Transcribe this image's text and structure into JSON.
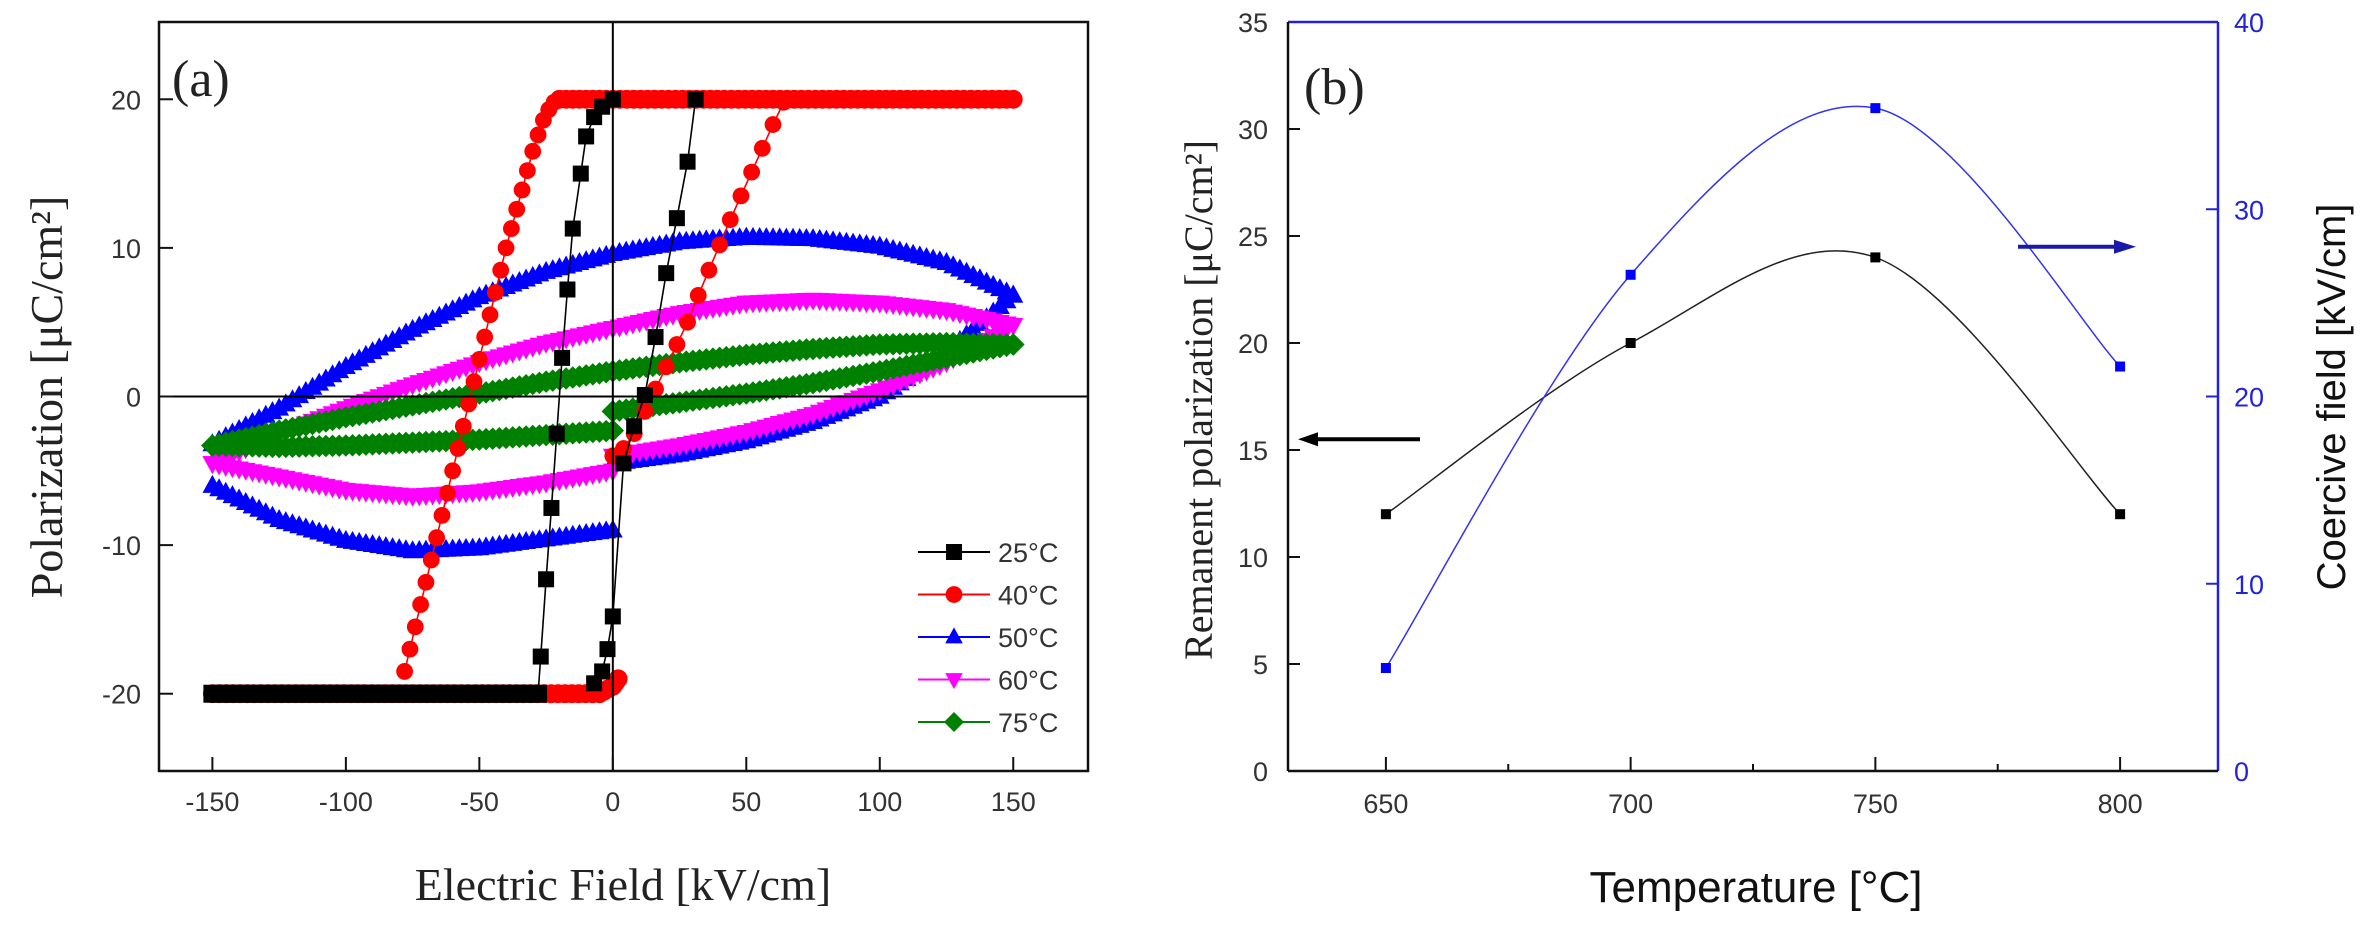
{
  "chart_data": [
    {
      "id": "a",
      "type": "scatter",
      "panel_label": "(a)",
      "title": "",
      "xlabel": "Electric Field [kV/cm]",
      "ylabel": "Polarization [μC/cm²]",
      "xlim": [
        -170,
        178
      ],
      "ylim": [
        -25.2,
        25.2
      ],
      "xticks": [
        -150,
        -100,
        -50,
        0,
        50,
        100,
        150
      ],
      "yticks": [
        -20,
        -10,
        0,
        10,
        20
      ],
      "xtick_labels": [
        "-150",
        "-100",
        "-50",
        "0",
        "50",
        "100",
        "150"
      ],
      "ytick_labels": [
        "-20",
        "-10",
        "0",
        "10",
        "20"
      ],
      "zero_lines": true,
      "legend_position": "bottom-right",
      "series": [
        {
          "name": "25°C",
          "color": "#000000",
          "marker": "square",
          "branches": [
            {
              "x": [
                -28,
                -150
              ],
              "y": [
                -20,
                -20
              ],
              "dense": true
            },
            {
              "x": [
                -28,
                -27,
                -25,
                -23,
                -21,
                -19,
                -17,
                -15,
                -12,
                -10,
                -7,
                -4,
                0
              ],
              "y": [
                -20,
                -17.5,
                -12.3,
                -7.5,
                -2.5,
                2.6,
                7.2,
                11.3,
                15,
                17.5,
                18.8,
                19.5,
                20
              ],
              "dense": false
            },
            {
              "x": [
                -7,
                -4,
                -2,
                0,
                4,
                8,
                12,
                16,
                20,
                24,
                28,
                31
              ],
              "y": [
                -19.3,
                -18.5,
                -17,
                -14.8,
                -4.5,
                -2,
                0.1,
                4,
                8.3,
                12,
                15.8,
                20
              ],
              "dense": false
            }
          ]
        },
        {
          "name": "40°C",
          "color": "#ff0000",
          "marker": "circle",
          "branches": [
            {
              "x": [
                -150,
                -80,
                -5,
                0,
                2
              ],
              "y": [
                -20,
                -20,
                -20,
                -19.5,
                -19
              ],
              "dense": true
            },
            {
              "x": [
                -78,
                -76,
                -74,
                -72,
                -70,
                -68,
                -66,
                -64,
                -62,
                -60,
                -58,
                -56,
                -54,
                -52,
                -50,
                -48,
                -46,
                -44,
                -42,
                -40,
                -38,
                -36,
                -34,
                -32,
                -30,
                -28,
                -26,
                -24,
                -22,
                -20
              ],
              "y": [
                -18.5,
                -17,
                -15.5,
                -14,
                -12.5,
                -11,
                -9.5,
                -8,
                -6.5,
                -5,
                -3.5,
                -2,
                -0.5,
                1,
                2.5,
                4,
                5.5,
                7,
                8.5,
                10,
                11.3,
                12.6,
                13.9,
                15.2,
                16.5,
                17.6,
                18.6,
                19.3,
                19.8,
                20
              ],
              "dense": false
            },
            {
              "x": [
                -20,
                0,
                60,
                150
              ],
              "y": [
                20,
                20,
                20,
                20
              ],
              "dense": true
            },
            {
              "x": [
                0,
                4,
                8,
                12,
                16,
                20,
                24,
                28,
                32,
                36,
                40,
                44,
                48,
                52,
                56,
                60,
                64
              ],
              "y": [
                -4,
                -3.5,
                -2.5,
                -1,
                0.5,
                2,
                3.5,
                5,
                6.8,
                8.5,
                10.2,
                11.9,
                13.5,
                15.1,
                16.7,
                18.3,
                19.8
              ],
              "dense": false
            }
          ]
        },
        {
          "name": "50°C",
          "color": "#0000ff",
          "marker": "triangle-up",
          "branches": [
            {
              "x": [
                -150,
                -125,
                -100,
                -75,
                -50,
                -25,
                0,
                25,
                50,
                75,
                100,
                125,
                150
              ],
              "y": [
                -3.2,
                -0.8,
                2,
                4.5,
                6.7,
                8.4,
                9.6,
                10.4,
                10.7,
                10.6,
                10.1,
                9,
                6.8
              ],
              "dense": true
            },
            {
              "x": [
                150,
                125,
                100,
                75,
                50,
                25,
                0
              ],
              "y": [
                6.8,
                3,
                0,
                -1.7,
                -3,
                -3.9,
                -4.5
              ],
              "dense": true
            },
            {
              "x": [
                0,
                -25,
                -50,
                -75,
                -100,
                -125,
                -150
              ],
              "y": [
                -9,
                -9.6,
                -10.2,
                -10.4,
                -9.7,
                -8.3,
                -6
              ],
              "dense": true
            }
          ]
        },
        {
          "name": "60°C",
          "color": "#ff00ff",
          "marker": "triangle-down",
          "branches": [
            {
              "x": [
                -150,
                -125,
                -100,
                -75,
                -50,
                -25,
                0,
                25,
                50,
                75,
                100,
                125,
                150
              ],
              "y": [
                -4.5,
                -2.5,
                -0.8,
                0.8,
                2.3,
                3.6,
                4.6,
                5.6,
                6.3,
                6.5,
                6.3,
                5.8,
                4.8
              ],
              "dense": true
            },
            {
              "x": [
                150,
                125,
                100,
                75,
                50,
                25,
                0
              ],
              "y": [
                4.8,
                2.3,
                0.4,
                -1.2,
                -2.4,
                -3.3,
                -4
              ],
              "dense": true
            },
            {
              "x": [
                0,
                -25,
                -50,
                -75,
                -100,
                -125,
                -150
              ],
              "y": [
                -5,
                -5.8,
                -6.4,
                -6.7,
                -6.3,
                -5.4,
                -4.5
              ],
              "dense": true
            }
          ]
        },
        {
          "name": "75°C",
          "color": "#008000",
          "marker": "diamond",
          "branches": [
            {
              "x": [
                -150,
                -125,
                -100,
                -75,
                -50,
                -25,
                0,
                25,
                50,
                75,
                100,
                125,
                150
              ],
              "y": [
                -3.3,
                -2.3,
                -1.4,
                -0.6,
                0.2,
                1,
                1.7,
                2.3,
                2.8,
                3.2,
                3.5,
                3.6,
                3.5
              ],
              "dense": true
            },
            {
              "x": [
                150,
                125,
                100,
                75,
                50,
                25,
                0
              ],
              "y": [
                3.5,
                2.6,
                1.7,
                0.9,
                0.2,
                -0.4,
                -1
              ],
              "dense": true
            },
            {
              "x": [
                0,
                -25,
                -50,
                -75,
                -100,
                -125,
                -150
              ],
              "y": [
                -2.3,
                -2.6,
                -2.9,
                -3.1,
                -3.3,
                -3.4,
                -3.3
              ],
              "dense": true
            }
          ]
        }
      ]
    },
    {
      "id": "b",
      "type": "line",
      "panel_label": "(b)",
      "title": "",
      "xlabel": "Temperature [°C]",
      "ylabel_left": "Remanent polarization [μC/cm²]",
      "ylabel_right": "Coercive field [kV/cm]",
      "xlim": [
        630,
        820
      ],
      "ylim_left": [
        0,
        35
      ],
      "ylim_right": [
        0,
        40
      ],
      "xticks": [
        650,
        700,
        750,
        800
      ],
      "xtick_labels": [
        "650",
        "700",
        "750",
        "800"
      ],
      "xminor": [
        675,
        725,
        775
      ],
      "yticks_left": [
        0,
        5,
        10,
        15,
        20,
        25,
        30,
        35
      ],
      "ytick_labels_left": [
        "0",
        "5",
        "10",
        "15",
        "20",
        "25",
        "30",
        "35"
      ],
      "yticks_right": [
        0,
        10,
        20,
        30,
        40
      ],
      "ytick_labels_right": [
        "0",
        "10",
        "20",
        "30",
        "40"
      ],
      "right_axis_color": "#2222dd",
      "x": [
        650,
        700,
        750,
        800
      ],
      "series": [
        {
          "name": "Remanent polarization",
          "axis": "left",
          "color": "#000000",
          "marker": "square",
          "values": [
            12,
            20,
            24,
            12
          ]
        },
        {
          "name": "Coercive field",
          "axis": "right",
          "color": "#0000ff",
          "marker": "square",
          "values": [
            5.5,
            26.5,
            35.4,
            21.6
          ]
        }
      ],
      "annotations": [
        {
          "type": "arrow",
          "direction": "left",
          "points_to": "left axis",
          "at_left_value": 15.5,
          "color": "#000000"
        },
        {
          "type": "arrow",
          "direction": "right",
          "points_to": "right axis",
          "at_right_value": 28,
          "color": "#1a1aa8"
        }
      ]
    }
  ]
}
